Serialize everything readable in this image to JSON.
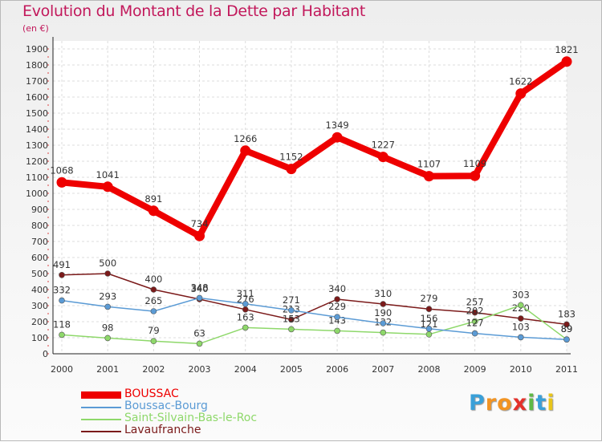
{
  "title": "Evolution du Montant de la Dette par Habitant",
  "subtitle": "(en €)",
  "logo": {
    "letters": [
      "P",
      "r",
      "o",
      "x",
      "i",
      "t",
      "i"
    ],
    "colors": [
      "#3aa0d8",
      "#f29423",
      "#f29423",
      "#e4312b",
      "#5fb946",
      "#3aa0d8",
      "#e8c51a"
    ]
  },
  "chart_data": {
    "type": "line",
    "x": [
      "2000",
      "2001",
      "2002",
      "2003",
      "2004",
      "2005",
      "2006",
      "2007",
      "2008",
      "2009",
      "2010",
      "2011"
    ],
    "yticks": [
      "0",
      "100",
      "200",
      "300",
      "400",
      "500",
      "600",
      "700",
      "800",
      "900",
      "1000",
      "1100",
      "1200",
      "1300",
      "1400",
      "1500",
      "1600",
      "1700",
      "1800",
      "1900"
    ],
    "ylim": [
      0,
      1900
    ],
    "grid": true,
    "legend_position": "bottom-left",
    "series": [
      {
        "name": "Lavaufranche",
        "color": "#7b1a1a",
        "values": [
          491,
          500,
          400,
          340,
          276,
          213,
          340,
          310,
          279,
          257,
          220,
          183
        ],
        "labels": [
          "491",
          "500",
          "400",
          "340",
          "276",
          "213",
          "340",
          "310",
          "279",
          "257",
          "220",
          "183"
        ]
      },
      {
        "name": "Saint-Silvain-Bas-le-Roc",
        "color": "#8ed86a",
        "values": [
          118,
          98,
          79,
          63,
          163,
          153,
          143,
          132,
          121,
          202,
          303,
          89
        ],
        "labels": [
          "118",
          "98",
          "79",
          "63",
          "163",
          "153",
          "143",
          "132",
          "121",
          "202",
          "303",
          "89"
        ]
      },
      {
        "name": "Boussac-Bourg",
        "color": "#5b9bd5",
        "values": [
          332,
          293,
          265,
          348,
          311,
          271,
          229,
          190,
          156,
          127,
          103,
          89
        ],
        "labels": [
          "332",
          "293",
          "265",
          "348",
          "311",
          "271",
          "229",
          "190",
          "156",
          "127",
          "103",
          "89"
        ]
      },
      {
        "name": "BOUSSAC",
        "color": "#ee0000",
        "values": [
          1068,
          1041,
          891,
          734,
          1266,
          1152,
          1349,
          1227,
          1107,
          1109,
          1622,
          1821
        ],
        "labels": [
          "1068",
          "1041",
          "891",
          "734",
          "1266",
          "1152",
          "1349",
          "1227",
          "1107",
          "1109",
          "1622",
          "1821"
        ]
      }
    ]
  },
  "legend": [
    {
      "label": "BOUSSAC",
      "color": "#ee0000"
    },
    {
      "label": "Boussac-Bourg",
      "color": "#5b9bd5"
    },
    {
      "label": "Saint-Silvain-Bas-le-Roc",
      "color": "#8ed86a"
    },
    {
      "label": "Lavaufranche",
      "color": "#7b1a1a"
    }
  ]
}
